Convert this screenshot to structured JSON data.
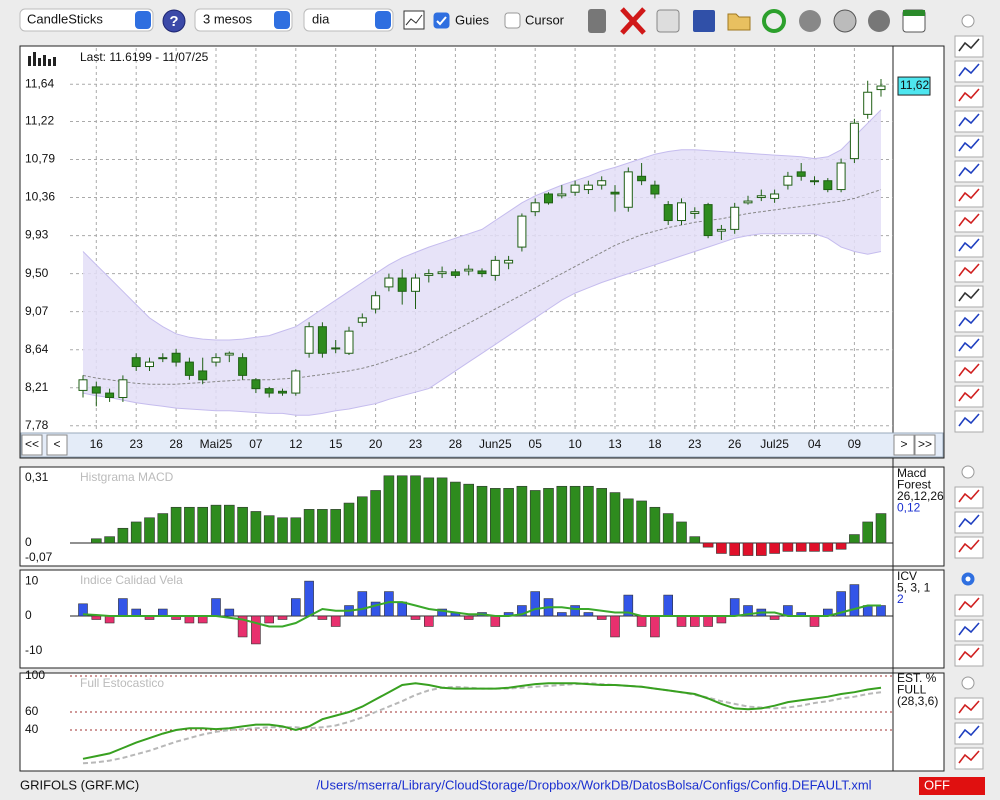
{
  "toolbar": {
    "chart_type": "CandleSticks",
    "period": "3 mesos",
    "interval": "dia",
    "guides": {
      "label": "Guies",
      "checked": true
    },
    "cursor": {
      "label": "Cursor",
      "checked": false
    }
  },
  "nav": [
    "<<",
    "<",
    ">",
    ">>"
  ],
  "chart_data": [
    {
      "type": "candlestick",
      "annotation": "Last: 11.6199 - 11/07/25",
      "last": {
        "value": 11.62,
        "label": "11,62"
      },
      "categories": [
        null,
        "16",
        null,
        null,
        "23",
        null,
        null,
        "28",
        null,
        null,
        "Mai25",
        null,
        null,
        "07",
        null,
        null,
        "12",
        null,
        null,
        "15",
        null,
        null,
        "20",
        null,
        null,
        "23",
        null,
        null,
        "28",
        null,
        null,
        "Jun25",
        null,
        null,
        "05",
        null,
        null,
        "10",
        null,
        null,
        "13",
        null,
        null,
        "18",
        null,
        null,
        "23",
        null,
        null,
        "26",
        null,
        null,
        "Jul25",
        null,
        null,
        "04",
        null,
        null,
        "09",
        null,
        null
      ],
      "open": [
        8.18,
        8.22,
        8.15,
        8.1,
        8.55,
        8.45,
        8.55,
        8.6,
        8.5,
        8.4,
        8.5,
        8.58,
        8.55,
        8.3,
        8.2,
        8.17,
        8.15,
        8.6,
        8.9,
        8.65,
        8.6,
        8.95,
        9.1,
        9.35,
        9.45,
        9.3,
        9.48,
        9.5,
        9.52,
        9.53,
        9.53,
        9.48,
        9.62,
        9.8,
        10.2,
        10.4,
        10.38,
        10.42,
        10.45,
        10.5,
        10.42,
        10.25,
        10.6,
        10.5,
        10.28,
        10.1,
        10.18,
        10.28,
        9.98,
        10.0,
        10.3,
        10.36,
        10.35,
        10.5,
        10.65,
        10.54,
        10.55,
        10.45,
        10.8,
        11.3,
        11.58
      ],
      "high": [
        8.35,
        8.28,
        8.2,
        8.35,
        8.6,
        8.55,
        8.6,
        8.65,
        8.55,
        8.55,
        8.6,
        8.62,
        8.6,
        8.32,
        8.22,
        8.2,
        8.42,
        8.95,
        8.95,
        8.75,
        8.9,
        9.05,
        9.3,
        9.5,
        9.55,
        9.5,
        9.55,
        9.58,
        9.55,
        9.6,
        9.56,
        9.7,
        9.7,
        10.18,
        10.35,
        10.42,
        10.5,
        10.55,
        10.55,
        10.6,
        10.5,
        10.7,
        10.75,
        10.55,
        10.32,
        10.35,
        10.25,
        10.3,
        10.05,
        10.3,
        10.38,
        10.45,
        10.45,
        10.65,
        10.75,
        10.6,
        10.58,
        10.8,
        11.25,
        11.68,
        11.7
      ],
      "low": [
        8.1,
        8.0,
        8.05,
        8.05,
        8.4,
        8.4,
        8.5,
        8.45,
        8.3,
        8.25,
        8.45,
        8.5,
        8.3,
        8.15,
        8.1,
        8.12,
        8.12,
        8.55,
        8.55,
        8.6,
        8.58,
        8.9,
        9.05,
        9.3,
        9.15,
        9.1,
        9.4,
        9.45,
        9.45,
        9.48,
        9.46,
        9.42,
        9.55,
        9.75,
        10.15,
        10.28,
        10.35,
        10.38,
        10.4,
        10.45,
        10.2,
        10.2,
        10.5,
        10.35,
        10.05,
        10.05,
        10.12,
        9.9,
        9.88,
        9.95,
        10.28,
        10.32,
        10.3,
        10.45,
        10.55,
        10.5,
        10.42,
        10.42,
        10.75,
        11.25,
        11.5
      ],
      "close": [
        8.3,
        8.15,
        8.1,
        8.3,
        8.45,
        8.5,
        8.55,
        8.5,
        8.35,
        8.3,
        8.55,
        8.6,
        8.35,
        8.2,
        8.15,
        8.15,
        8.4,
        8.9,
        8.6,
        8.66,
        8.85,
        9.0,
        9.25,
        9.45,
        9.3,
        9.45,
        9.5,
        9.52,
        9.48,
        9.55,
        9.5,
        9.65,
        9.65,
        10.15,
        10.3,
        10.3,
        10.4,
        10.5,
        10.5,
        10.55,
        10.4,
        10.65,
        10.55,
        10.4,
        10.1,
        10.3,
        10.2,
        9.93,
        10.0,
        10.25,
        10.32,
        10.38,
        10.4,
        10.6,
        10.6,
        10.55,
        10.45,
        10.75,
        11.2,
        11.55,
        11.62
      ],
      "upper": [
        9.75,
        9.6,
        9.45,
        9.3,
        9.15,
        9.0,
        8.9,
        8.82,
        8.78,
        8.76,
        8.75,
        8.75,
        8.76,
        8.78,
        8.8,
        8.85,
        8.9,
        9.0,
        9.1,
        9.2,
        9.3,
        9.4,
        9.5,
        9.6,
        9.68,
        9.74,
        9.8,
        9.85,
        9.9,
        9.95,
        10.0,
        10.1,
        10.2,
        10.3,
        10.38,
        10.44,
        10.5,
        10.55,
        10.6,
        10.66,
        10.7,
        10.75,
        10.8,
        10.85,
        10.88,
        10.9,
        10.9,
        10.89,
        10.88,
        10.87,
        10.86,
        10.85,
        10.84,
        10.83,
        10.82,
        10.8,
        10.82,
        10.9,
        11.05,
        11.2,
        11.35
      ],
      "lower": [
        8.15,
        8.12,
        8.1,
        8.07,
        8.04,
        8.02,
        8.0,
        7.98,
        7.97,
        7.96,
        7.95,
        7.95,
        7.94,
        7.93,
        7.92,
        7.92,
        7.9,
        7.9,
        7.92,
        7.95,
        7.97,
        8.0,
        8.03,
        8.08,
        8.12,
        8.16,
        8.2,
        8.3,
        8.4,
        8.5,
        8.6,
        8.7,
        8.8,
        8.9,
        9.0,
        9.1,
        9.2,
        9.28,
        9.34,
        9.4,
        9.45,
        9.5,
        9.55,
        9.6,
        9.65,
        9.7,
        9.75,
        9.8,
        9.85,
        9.9,
        9.93,
        9.95,
        9.95,
        9.95,
        9.95,
        9.95,
        9.9,
        9.8,
        9.75,
        9.72,
        9.75
      ],
      "middle": [
        8.35,
        8.32,
        8.3,
        8.28,
        8.26,
        8.25,
        8.25,
        8.25,
        8.26,
        8.27,
        8.28,
        8.29,
        8.3,
        8.3,
        8.3,
        8.31,
        8.32,
        8.34,
        8.36,
        8.38,
        8.4,
        8.43,
        8.47,
        8.52,
        8.57,
        8.62,
        8.7,
        8.78,
        8.86,
        8.94,
        9.02,
        9.1,
        9.18,
        9.26,
        9.34,
        9.42,
        9.5,
        9.58,
        9.66,
        9.74,
        9.82,
        9.88,
        9.94,
        9.98,
        10.02,
        10.05,
        10.08,
        10.1,
        10.12,
        10.15,
        10.18,
        10.2,
        10.22,
        10.24,
        10.26,
        10.28,
        10.3,
        10.32,
        10.35,
        10.4,
        10.45
      ],
      "up_color": "#ffffff",
      "down_color": "#2e8b1e",
      "edge_color": "#1f5f14",
      "band_color": "#e3def7",
      "band_edge": "#c5bcee",
      "middle_color": "#888888",
      "ylim": [
        7.71,
        12.05
      ],
      "yticks": [
        {
          "value": 7.78,
          "label": "7,78"
        },
        {
          "value": 8.21,
          "label": "8,21"
        },
        {
          "value": 8.64,
          "label": "8,64"
        },
        {
          "value": 9.07,
          "label": "9,07"
        },
        {
          "value": 9.5,
          "label": "9,50"
        },
        {
          "value": 9.93,
          "label": "9,93"
        },
        {
          "value": 10.36,
          "label": "10,36"
        },
        {
          "value": 10.79,
          "label": "10,79"
        },
        {
          "value": 11.22,
          "label": "11,22"
        },
        {
          "value": 11.64,
          "label": "11,64"
        }
      ],
      "grid": true
    },
    {
      "type": "bar",
      "title": "Histgrama MACD",
      "legend": [
        "Macd",
        "Forest",
        "26,12,26",
        "0,12"
      ],
      "values": [
        null,
        0.02,
        0.03,
        0.07,
        0.1,
        0.12,
        0.14,
        0.17,
        0.17,
        0.17,
        0.18,
        0.18,
        0.17,
        0.15,
        0.13,
        0.12,
        0.12,
        0.16,
        0.16,
        0.16,
        0.19,
        0.22,
        0.25,
        0.32,
        0.32,
        0.32,
        0.31,
        0.31,
        0.29,
        0.28,
        0.27,
        0.26,
        0.26,
        0.27,
        0.25,
        0.26,
        0.27,
        0.27,
        0.27,
        0.26,
        0.24,
        0.21,
        0.2,
        0.17,
        0.14,
        0.1,
        0.03,
        -0.02,
        -0.05,
        -0.06,
        -0.06,
        -0.06,
        -0.05,
        -0.04,
        -0.04,
        -0.04,
        -0.04,
        -0.03,
        0.04,
        0.1,
        0.14
      ],
      "color": "#2e8b1e",
      "negative_color": "#e0102a",
      "ylim": [
        -0.105,
        0.357
      ],
      "yticks": [
        {
          "value": 0.31,
          "label": "0,31"
        },
        0,
        {
          "value": -0.07,
          "label": "-0,07"
        }
      ]
    },
    {
      "type": "bar",
      "title": "Indice Calidad Vela",
      "legend": [
        "ICV",
        "5, 3, 1",
        "2"
      ],
      "values": [
        3.5,
        -1,
        -2,
        5,
        2,
        -1,
        2,
        -1,
        -2,
        -2,
        5,
        2,
        -6,
        -8,
        -2,
        -1,
        5,
        10,
        -1,
        -3,
        3,
        7,
        4,
        7,
        4,
        -1,
        -3,
        2,
        1,
        -1,
        1,
        -3,
        1,
        3,
        7,
        5,
        1,
        3,
        1,
        -1,
        -6,
        6,
        -3,
        -6,
        6,
        -3,
        -3,
        -3,
        -2,
        5,
        3,
        2,
        -1,
        3,
        1,
        -3,
        2,
        7,
        9,
        3,
        3
      ],
      "signal": [
        0.5,
        0.3,
        0,
        0,
        0,
        0,
        0,
        0,
        0,
        0,
        0,
        -0.5,
        -1,
        -2,
        -3,
        -3,
        -2,
        0,
        2,
        1.5,
        1.5,
        2,
        3,
        4,
        4,
        3,
        2,
        1.5,
        1,
        0.5,
        0.5,
        0,
        0,
        0.5,
        2,
        2.5,
        2.5,
        2,
        2,
        1.5,
        1,
        1,
        0,
        0,
        0,
        0,
        0,
        0,
        0,
        0,
        0.5,
        1,
        1,
        0,
        0,
        0,
        0,
        1,
        2,
        3,
        3
      ],
      "color": "#3355e8",
      "negative_color": "#e8306e",
      "signal_color": "#3aa82a",
      "ylim": [
        -14.9,
        12.9
      ],
      "yticks": [
        10,
        0,
        -10
      ]
    },
    {
      "type": "line",
      "title": "Full Estocastico",
      "legend": [
        "EST. %",
        "FULL",
        "(28,3,6)"
      ],
      "k": [
        8,
        11,
        14,
        20,
        26,
        31,
        36,
        40,
        42,
        42,
        41,
        42,
        44,
        46,
        46,
        44,
        40,
        44,
        52,
        56,
        60,
        66,
        74,
        82,
        90,
        92,
        90,
        87,
        86,
        86,
        86,
        86,
        87,
        89,
        91,
        92,
        92,
        92,
        91,
        90,
        90,
        89,
        88,
        86,
        84,
        82,
        80,
        75,
        69,
        64,
        63,
        64,
        67,
        71,
        73,
        75,
        77,
        80,
        82,
        85,
        87
      ],
      "d": [
        3,
        4,
        6,
        9,
        13,
        17,
        22,
        27,
        31,
        35,
        38,
        40,
        41,
        42,
        43,
        43,
        43,
        42,
        43,
        45,
        49,
        54,
        60,
        66,
        72,
        79,
        84,
        87,
        88,
        87,
        86,
        86,
        86,
        87,
        88,
        89,
        90,
        91,
        92,
        91,
        90,
        89,
        88,
        86,
        84,
        82,
        79,
        76,
        72,
        69,
        66,
        65,
        64,
        65,
        67,
        70,
        72,
        75,
        77,
        80,
        82
      ],
      "k_color": "#38a020",
      "d_color": "#b8b8b8",
      "grid_color": "#a03030",
      "ylim": [
        0,
        100
      ],
      "yticks": [
        100,
        60,
        40
      ]
    }
  ],
  "footer": {
    "symbol": "GRIFOLS (GRF.MC)",
    "config_path": "/Users/mserra/Library/CloudStorage/Dropbox/WorkDB/DatosBolsa/Configs/Config.DEFAULT.xml",
    "status": "OFF"
  }
}
